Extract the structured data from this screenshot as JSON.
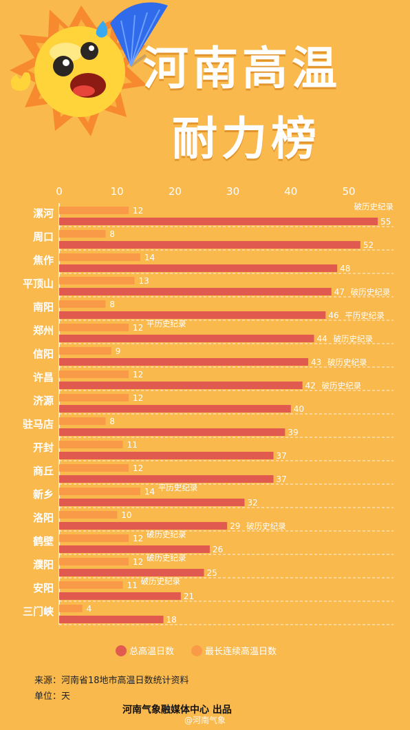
{
  "header": {
    "title_line1": "河南高温",
    "title_line2": "耐力榜"
  },
  "colors": {
    "background": "#f9b94d",
    "total_days": "#e05a4f",
    "longest_streak": "#f89a48",
    "text_white": "#ffffff"
  },
  "chart_data": {
    "type": "bar",
    "orientation": "horizontal",
    "categories": [
      "漯河",
      "周口",
      "焦作",
      "平顶山",
      "南阳",
      "郑州",
      "信阳",
      "许昌",
      "济源",
      "驻马店",
      "开封",
      "商丘",
      "新乡",
      "洛阳",
      "鹤壁",
      "濮阳",
      "安阳",
      "三门峡"
    ],
    "series": [
      {
        "name": "最长连续高温日数",
        "values": [
          12,
          8,
          14,
          13,
          8,
          12,
          9,
          12,
          12,
          8,
          11,
          12,
          14,
          10,
          12,
          12,
          11,
          4
        ]
      },
      {
        "name": "总高温日数",
        "values": [
          55,
          52,
          48,
          47,
          46,
          44,
          43,
          42,
          40,
          39,
          37,
          37,
          32,
          29,
          26,
          25,
          21,
          18
        ]
      }
    ],
    "streak_notes": [
      "",
      "",
      "",
      "",
      "",
      "平历史纪录",
      "",
      "",
      "",
      "",
      "",
      "",
      "平历史纪录",
      "",
      "破历史纪录",
      "破历史纪录",
      "破历史纪录",
      ""
    ],
    "total_notes": [
      "破历史纪录",
      "",
      "",
      "破历史纪录",
      "平历史纪录",
      "破历史纪录",
      "破历史纪录",
      "破历史纪录",
      "",
      "",
      "",
      "",
      "",
      "破历史纪录",
      "",
      "",
      "",
      ""
    ],
    "xticks": [
      0,
      10,
      20,
      30,
      40,
      50
    ],
    "xlim": [
      0,
      57
    ],
    "grid": "dashed horizontal separators",
    "legend_position": "bottom"
  },
  "footer": {
    "source": "来源：河南省18地市高温日数统计资料",
    "unit": "单位：天",
    "producer": "河南气象融媒体中心 出品",
    "watermark": "@河南气象"
  }
}
